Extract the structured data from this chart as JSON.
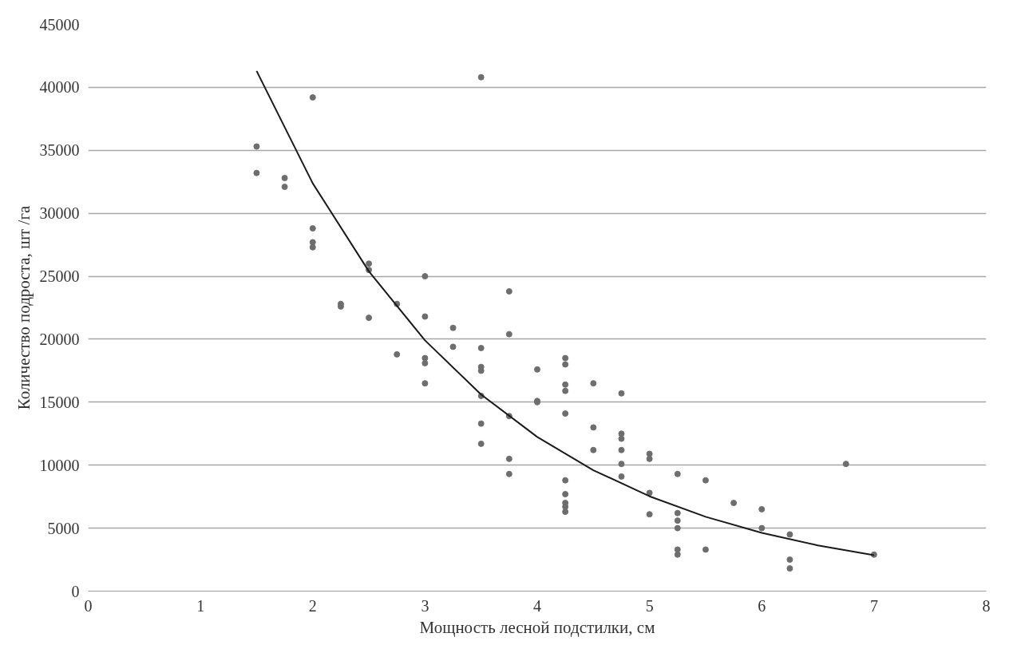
{
  "chart_data": {
    "type": "scatter",
    "xlabel": "Мощность лесной подстилки, см",
    "ylabel": "Количество подроста, шт /га",
    "xlim": [
      0,
      8
    ],
    "xticks": [
      0,
      1,
      2,
      3,
      4,
      5,
      6,
      7,
      8
    ],
    "ylim": [
      0,
      45000
    ],
    "yticks": [
      0,
      5000,
      10000,
      15000,
      20000,
      25000,
      30000,
      35000,
      40000,
      45000
    ],
    "grid": "y",
    "series": [
      {
        "marker": "circle",
        "color": "#6e6e6e",
        "x": [
          1.5,
          1.5,
          1.75,
          1.75,
          2,
          2,
          2,
          2,
          2.25,
          2.25,
          2.5,
          2.5,
          2.5,
          2.75,
          2.75,
          3,
          3,
          3,
          3,
          3,
          3.25,
          3.25,
          3.5,
          3.5,
          3.5,
          3.5,
          3.5,
          3.5,
          3.5,
          3.75,
          3.75,
          3.75,
          3.75,
          3.75,
          4,
          4,
          4,
          4.25,
          4.25,
          4.25,
          4.25,
          4.25,
          4.25,
          4.25,
          4.25,
          4.25,
          4.25,
          4.5,
          4.5,
          4.5,
          4.75,
          4.75,
          4.75,
          4.75,
          4.75,
          4.75,
          5,
          5,
          5,
          5,
          5.25,
          5.25,
          5.25,
          5.25,
          5.25,
          5.25,
          5.5,
          5.5,
          5.75,
          6,
          6,
          6.25,
          6.25,
          6.25,
          6.75,
          7
        ],
        "values": [
          35300,
          33200,
          32800,
          32100,
          39200,
          28800,
          27700,
          27300,
          22800,
          22600,
          26000,
          25500,
          21700,
          22800,
          18800,
          25000,
          21800,
          18500,
          18100,
          16500,
          20900,
          19400,
          40800,
          19300,
          17800,
          17500,
          15500,
          13300,
          11700,
          23800,
          20400,
          13900,
          10500,
          9300,
          17600,
          15100,
          15000,
          18500,
          18000,
          16400,
          15900,
          14100,
          8800,
          7700,
          7000,
          6700,
          6300,
          16500,
          13000,
          11200,
          15700,
          12500,
          12100,
          11200,
          10100,
          9100,
          10900,
          10500,
          7800,
          6100,
          9300,
          6200,
          5600,
          5000,
          3300,
          2900,
          8800,
          3300,
          7000,
          6500,
          5000,
          4500,
          2500,
          1800,
          10100,
          2900
        ]
      },
      {
        "type": "line",
        "color": "#1a1a1a",
        "line_style": "solid",
        "x": [
          1.5,
          2,
          2.5,
          3,
          3.5,
          4,
          4.5,
          5,
          5.5,
          6,
          6.5,
          7
        ],
        "values": [
          41300,
          32380,
          25390,
          19910,
          15610,
          12240,
          9600,
          7530,
          5900,
          4630,
          3630,
          2850
        ]
      }
    ]
  }
}
